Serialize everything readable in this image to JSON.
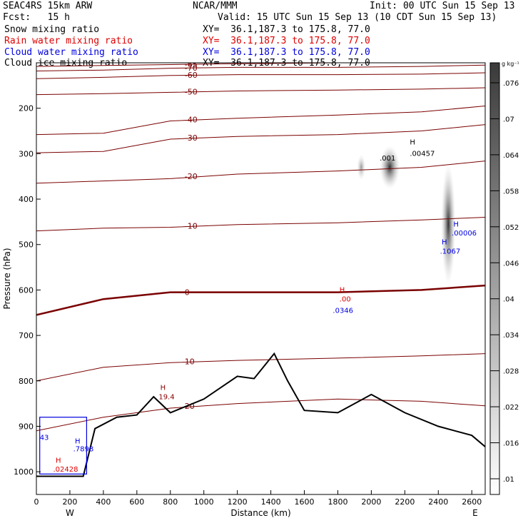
{
  "header": {
    "model": "SEAC4RS 15km ARW",
    "fcst": "Fcst:   15 h",
    "center": "NCAR/MMM",
    "init": "Init: 00 UTC Sun 15 Sep 13",
    "valid": "Valid: 15 UTC Sun 15 Sep 13 (10 CDT Sun 15 Sep 13)",
    "fields": [
      {
        "name": "Snow mixing ratio",
        "xy": "XY=  36.1,187.3 to 175.8, 77.0",
        "color": "#000000"
      },
      {
        "name": "Rain water mixing ratio",
        "xy": "XY=  36.1,187.3 to 175.8, 77.0",
        "color": "#e00000"
      },
      {
        "name": "Cloud water mixing ratio",
        "xy": "XY=  36.1,187.3 to 175.8, 77.0",
        "color": "#0000e0"
      },
      {
        "name": "Cloud ice mixing ratio",
        "xy": "XY=  36.1,187.3 to 175.8, 77.0",
        "color": "#000000"
      }
    ]
  },
  "chart_data": {
    "type": "contour",
    "xlabel": "Distance (km)",
    "ylabel": "Pressure (hPa)",
    "xlim": [
      0,
      2680
    ],
    "ylim": [
      100,
      1050
    ],
    "x_ticks": [
      0,
      200,
      400,
      600,
      800,
      1000,
      1200,
      1400,
      1600,
      1800,
      2000,
      2200,
      2400,
      2600
    ],
    "y_ticks": [
      200,
      300,
      400,
      500,
      600,
      700,
      800,
      900,
      1000
    ],
    "x_end_labels": {
      "left": "W",
      "right": "E"
    },
    "colorbar": {
      "unit": "g kg⁻¹",
      "ticks": [
        ".01",
        ".016",
        ".022",
        ".028",
        ".034",
        ".04",
        ".046",
        ".052",
        ".058",
        ".064",
        ".07",
        ".076"
      ]
    },
    "temperature_contours": [
      {
        "label": "-65",
        "p": [
          108,
          106,
          104,
          102,
          100,
          99,
          98
        ]
      },
      {
        "label": "-60",
        "p": [
          135,
          132,
          128,
          126,
          126,
          125,
          122
        ]
      },
      {
        "label": "-70",
        "p": [
          118,
          116,
          112,
          110,
          110,
          108,
          105
        ]
      },
      {
        "label": "-50",
        "p": [
          170,
          168,
          165,
          162,
          160,
          158,
          155
        ]
      },
      {
        "label": "-40",
        "p": [
          258,
          255,
          228,
          222,
          215,
          208,
          195
        ]
      },
      {
        "label": "-30",
        "p": [
          298,
          295,
          268,
          262,
          258,
          250,
          236
        ]
      },
      {
        "label": "-20",
        "p": [
          365,
          360,
          355,
          345,
          338,
          330,
          316
        ]
      },
      {
        "label": "-10",
        "p": [
          470,
          464,
          462,
          456,
          452,
          446,
          440
        ]
      },
      {
        "label": "0",
        "p": [
          655,
          620,
          605,
          605,
          605,
          600,
          590
        ]
      },
      {
        "label": "10",
        "p": [
          800,
          770,
          760,
          755,
          750,
          745,
          740
        ]
      },
      {
        "label": "20",
        "p": [
          910,
          880,
          860,
          850,
          840,
          845,
          855
        ]
      }
    ],
    "terrain_hPa": [
      1010,
      1010,
      1010,
      905,
      880,
      875,
      835,
      870,
      840,
      790,
      795,
      740,
      800,
      865,
      870,
      830,
      870,
      900,
      920,
      945
    ],
    "terrain_x_km": [
      0,
      150,
      280,
      350,
      480,
      600,
      700,
      800,
      1000,
      1200,
      1300,
      1420,
      1500,
      1600,
      1800,
      2000,
      2200,
      2400,
      2600,
      2680
    ],
    "annotations": [
      {
        "text": "H",
        "x": 2230,
        "p": 280,
        "color": "#000000"
      },
      {
        "text": ".00457",
        "x": 2230,
        "p": 305,
        "color": "#000000"
      },
      {
        "text": ".001",
        "x": 2050,
        "p": 315,
        "color": "#000000"
      },
      {
        "text": "H",
        "x": 2490,
        "p": 460,
        "color": "#0000e0"
      },
      {
        "text": ".00006",
        "x": 2480,
        "p": 480,
        "color": "#0000e0"
      },
      {
        "text": "H",
        "x": 2420,
        "p": 500,
        "color": "#0000e0"
      },
      {
        "text": ".1067",
        "x": 2410,
        "p": 520,
        "color": "#0000e0"
      },
      {
        "text": "H",
        "x": 1810,
        "p": 605,
        "color": "#e00000"
      },
      {
        "text": ".00",
        "x": 1810,
        "p": 625,
        "color": "#e00000"
      },
      {
        "text": ".0346",
        "x": 1770,
        "p": 650,
        "color": "#0000e0"
      },
      {
        "text": "H",
        "x": 740,
        "p": 820,
        "color": "#8b0000"
      },
      {
        "text": "19.4",
        "x": 730,
        "p": 840,
        "color": "#8b0000"
      },
      {
        "text": "43",
        "x": 20,
        "p": 930,
        "color": "#0000e0"
      },
      {
        "text": "H",
        "x": 230,
        "p": 938,
        "color": "#0000e0"
      },
      {
        "text": ".7898",
        "x": 220,
        "p": 955,
        "color": "#0000e0"
      },
      {
        "text": "H",
        "x": 115,
        "p": 980,
        "color": "#e00000"
      },
      {
        "text": ".02428",
        "x": 100,
        "p": 1000,
        "color": "#e00000"
      }
    ]
  }
}
